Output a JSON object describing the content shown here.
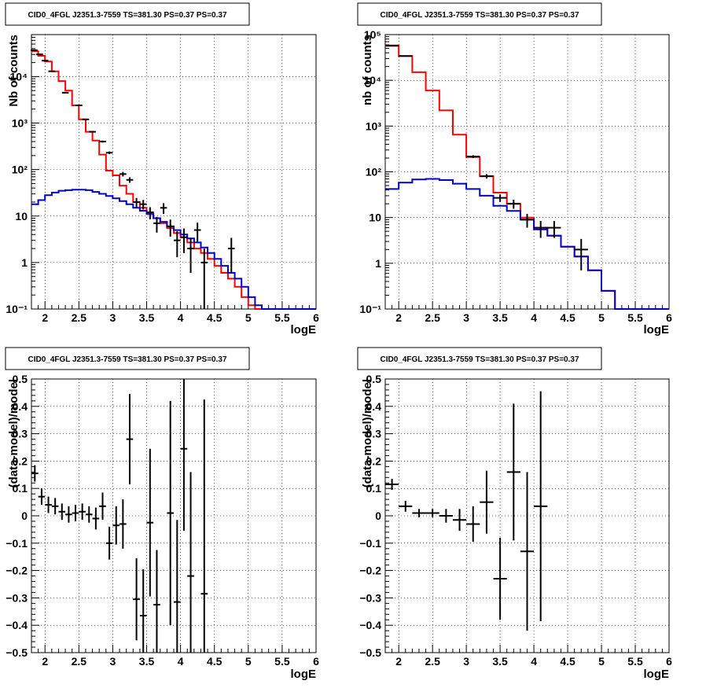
{
  "chart_data": [
    {
      "type": "line",
      "title": "CID0_4FGL J2351.3-7559 TS=381.30 PS=0.37 PS=0.37",
      "xlabel": "logE",
      "ylabel": "Nb of counts",
      "xlim": [
        1.8,
        6.0
      ],
      "ylim": [
        0.1,
        80000
      ],
      "yscale": "log",
      "grid": true,
      "x_ticks": [
        "2",
        "2.5",
        "3",
        "3.5",
        "4",
        "4.5",
        "5",
        "5.5",
        "6"
      ],
      "y_ticks": [
        "10⁻¹",
        "1",
        "10",
        "10²",
        "10³",
        "10⁴"
      ],
      "series": [
        {
          "color": "#ff0000",
          "style": "step",
          "edges": [
            1.8,
            1.9,
            2.0,
            2.1,
            2.2,
            2.3,
            2.4,
            2.5,
            2.6,
            2.7,
            2.8,
            2.9,
            3.0,
            3.1,
            3.2,
            3.3,
            3.4,
            3.5,
            3.6,
            3.7,
            3.8,
            3.9,
            4.0,
            4.1,
            4.2,
            4.3,
            4.4,
            4.5,
            4.6,
            4.7,
            4.8,
            4.9,
            5.0,
            5.1,
            5.2,
            5.3,
            5.4,
            5.5,
            5.6,
            5.7,
            5.8,
            5.9,
            6.0
          ],
          "values": [
            35000,
            28000,
            21000,
            13000,
            8000,
            5000,
            2400,
            1200,
            650,
            420,
            210,
            95,
            75,
            45,
            30,
            20,
            15,
            12,
            9,
            7,
            5.5,
            4.3,
            3.5,
            2.7,
            2.0,
            1.6,
            1.2,
            0.85,
            0.6,
            0.45,
            0.3,
            0.18,
            0.12,
            0.09,
            0.09,
            0.09,
            0.09,
            0.09,
            0.09,
            0.09,
            0.09,
            0.09
          ]
        },
        {
          "color": "#0000cc",
          "style": "step",
          "edges": [
            1.8,
            1.9,
            2.0,
            2.1,
            2.2,
            2.3,
            2.4,
            2.5,
            2.6,
            2.7,
            2.8,
            2.9,
            3.0,
            3.1,
            3.2,
            3.3,
            3.4,
            3.5,
            3.6,
            3.7,
            3.8,
            3.9,
            4.0,
            4.1,
            4.2,
            4.3,
            4.4,
            4.5,
            4.6,
            4.7,
            4.8,
            4.9,
            5.0,
            5.1,
            5.2,
            5.3,
            5.4,
            5.5,
            5.6,
            5.7,
            5.8,
            5.9,
            6.0
          ],
          "values": [
            18,
            22,
            28,
            32,
            35,
            36,
            37,
            37,
            36,
            33,
            30,
            27,
            24,
            21,
            18,
            15,
            13,
            11,
            9,
            7.5,
            6,
            5,
            4,
            3.3,
            2.7,
            2.1,
            1.6,
            1.2,
            0.85,
            0.6,
            0.45,
            0.3,
            0.18,
            0.12,
            0.09,
            0.09,
            0.09,
            0.09,
            0.09,
            0.09,
            0.09,
            0.09
          ]
        },
        {
          "color": "#000000",
          "style": "errorbar",
          "points": [
            {
              "x": 1.84,
              "y": 37000,
              "yerr_lo": 200,
              "yerr_hi": 200,
              "xerr": 0.05
            },
            {
              "x": 1.92,
              "y": 30000,
              "yerr_lo": 180,
              "yerr_hi": 180,
              "xerr": 0.05
            },
            {
              "x": 2.0,
              "y": 22000,
              "yerr_lo": 150,
              "yerr_hi": 150,
              "xerr": 0.05
            },
            {
              "x": 2.1,
              "y": 13000,
              "yerr_lo": 110,
              "yerr_hi": 110,
              "xerr": 0.05
            },
            {
              "x": 2.3,
              "y": 4500,
              "yerr_lo": 70,
              "yerr_hi": 70,
              "xerr": 0.05
            },
            {
              "x": 2.5,
              "y": 2400,
              "yerr_lo": 50,
              "yerr_hi": 50,
              "xerr": 0.05
            },
            {
              "x": 2.6,
              "y": 1200,
              "yerr_lo": 35,
              "yerr_hi": 35,
              "xerr": 0.05
            },
            {
              "x": 2.7,
              "y": 650,
              "yerr_lo": 25,
              "yerr_hi": 25,
              "xerr": 0.05
            },
            {
              "x": 2.85,
              "y": 400,
              "yerr_lo": 20,
              "yerr_hi": 20,
              "xerr": 0.05
            },
            {
              "x": 2.95,
              "y": 230,
              "yerr_lo": 15,
              "yerr_hi": 15,
              "xerr": 0.05
            },
            {
              "x": 3.15,
              "y": 80,
              "yerr_lo": 9,
              "yerr_hi": 9,
              "xerr": 0.05
            },
            {
              "x": 3.25,
              "y": 60,
              "yerr_lo": 8,
              "yerr_hi": 8,
              "xerr": 0.05
            },
            {
              "x": 3.35,
              "y": 20,
              "yerr_lo": 4.5,
              "yerr_hi": 4.5,
              "xerr": 0.05
            },
            {
              "x": 3.45,
              "y": 18,
              "yerr_lo": 4.2,
              "yerr_hi": 4.2,
              "xerr": 0.05
            },
            {
              "x": 3.55,
              "y": 12,
              "yerr_lo": 3.5,
              "yerr_hi": 3.5,
              "xerr": 0.05
            },
            {
              "x": 3.65,
              "y": 7,
              "yerr_lo": 2.6,
              "yerr_hi": 2.6,
              "xerr": 0.05
            },
            {
              "x": 3.75,
              "y": 15,
              "yerr_lo": 3.9,
              "yerr_hi": 3.9,
              "xerr": 0.05
            },
            {
              "x": 3.85,
              "y": 6,
              "yerr_lo": 2.4,
              "yerr_hi": 2.4,
              "xerr": 0.05
            },
            {
              "x": 3.95,
              "y": 3,
              "yerr_lo": 1.7,
              "yerr_hi": 1.7,
              "xerr": 0.05
            },
            {
              "x": 4.05,
              "y": 3.5,
              "yerr_lo": 1.9,
              "yerr_hi": 1.9,
              "xerr": 0.05
            },
            {
              "x": 4.15,
              "y": 2,
              "yerr_lo": 1.4,
              "yerr_hi": 1.4,
              "xerr": 0.05
            },
            {
              "x": 4.25,
              "y": 5,
              "yerr_lo": 2.2,
              "yerr_hi": 2.2,
              "xerr": 0.05
            },
            {
              "x": 4.35,
              "y": 1,
              "yerr_lo": 0.95,
              "yerr_hi": 1.0,
              "xerr": 0.05
            },
            {
              "x": 4.75,
              "y": 2,
              "yerr_lo": 1.4,
              "yerr_hi": 1.4,
              "xerr": 0.05
            }
          ]
        }
      ]
    },
    {
      "type": "line",
      "title": "CID0_4FGL J2351.3-7559 TS=381.30 PS=0.37 PS=0.37",
      "xlabel": "logE",
      "ylabel": "nb of counts",
      "xlim": [
        1.8,
        6.0
      ],
      "ylim": [
        0.1,
        100000
      ],
      "yscale": "log",
      "grid": true,
      "x_ticks": [
        "2",
        "2.5",
        "3",
        "3.5",
        "4",
        "4.5",
        "5",
        "5.5",
        "6"
      ],
      "y_ticks": [
        "10⁻¹",
        "1",
        "10",
        "10²",
        "10³",
        "10⁴",
        "10⁵"
      ],
      "series": [
        {
          "color": "#ff0000",
          "style": "step",
          "edges": [
            1.8,
            2.0,
            2.2,
            2.4,
            2.6,
            2.8,
            3.0,
            3.2,
            3.4,
            3.6,
            3.8,
            4.0,
            4.2,
            4.4,
            4.6,
            4.8,
            5.0,
            5.2,
            5.4,
            5.6,
            5.8,
            6.0
          ],
          "values": [
            58000,
            34000,
            15000,
            6000,
            2200,
            650,
            210,
            80,
            35,
            20,
            10,
            6,
            4,
            2.3,
            1.4,
            0.7,
            0.25,
            0.1,
            0.09,
            0.09,
            0.09
          ]
        },
        {
          "color": "#0000cc",
          "style": "step",
          "edges": [
            1.8,
            2.0,
            2.2,
            2.4,
            2.6,
            2.8,
            3.0,
            3.2,
            3.4,
            3.6,
            3.8,
            4.0,
            4.2,
            4.4,
            4.6,
            4.8,
            5.0,
            5.2,
            5.4,
            5.6,
            5.8,
            6.0
          ],
          "values": [
            42,
            58,
            68,
            70,
            66,
            55,
            42,
            30,
            18,
            14,
            9,
            5.5,
            4,
            2.3,
            1.4,
            0.7,
            0.25,
            0.1,
            0.09,
            0.09,
            0.09
          ]
        },
        {
          "color": "#000000",
          "style": "errorbar",
          "points": [
            {
              "x": 1.9,
              "y": 57000,
              "yerr_lo": 240,
              "yerr_hi": 240,
              "xerr": 0.1
            },
            {
              "x": 2.1,
              "y": 34000,
              "yerr_lo": 180,
              "yerr_hi": 180,
              "xerr": 0.1
            },
            {
              "x": 3.1,
              "y": 215,
              "yerr_lo": 15,
              "yerr_hi": 15,
              "xerr": 0.1
            },
            {
              "x": 3.3,
              "y": 80,
              "yerr_lo": 9,
              "yerr_hi": 9,
              "xerr": 0.1
            },
            {
              "x": 3.5,
              "y": 27,
              "yerr_lo": 5,
              "yerr_hi": 5,
              "xerr": 0.1
            },
            {
              "x": 3.7,
              "y": 20,
              "yerr_lo": 4.5,
              "yerr_hi": 4.5,
              "xerr": 0.1
            },
            {
              "x": 3.9,
              "y": 9,
              "yerr_lo": 3,
              "yerr_hi": 3,
              "xerr": 0.1
            },
            {
              "x": 4.1,
              "y": 6,
              "yerr_lo": 2.4,
              "yerr_hi": 2.4,
              "xerr": 0.1
            },
            {
              "x": 4.3,
              "y": 6,
              "yerr_lo": 2.4,
              "yerr_hi": 2.4,
              "xerr": 0.1
            },
            {
              "x": 4.7,
              "y": 2,
              "yerr_lo": 1.3,
              "yerr_hi": 1.4,
              "xerr": 0.1
            }
          ]
        }
      ]
    },
    {
      "type": "scatter",
      "title": "CID0_4FGL J2351.3-7559 TS=381.30 PS=0.37 PS=0.37",
      "xlabel": "logE",
      "ylabel": "(data-model)/model",
      "xlim": [
        1.8,
        6.0
      ],
      "ylim": [
        -0.5,
        0.5
      ],
      "grid": true,
      "x_ticks": [
        "2",
        "2.5",
        "3",
        "3.5",
        "4",
        "4.5",
        "5",
        "5.5",
        "6"
      ],
      "y_ticks": [
        "−0.5",
        "−0.4",
        "−0.3",
        "−0.2",
        "−0.1",
        "0",
        "0.1",
        "0.2",
        "0.3",
        "0.4",
        "0.5"
      ],
      "series": [
        {
          "color": "#000000",
          "style": "errorbar",
          "points": [
            {
              "x": 1.85,
              "y": 0.155,
              "yerr": 0.03,
              "xerr": 0.05
            },
            {
              "x": 1.95,
              "y": 0.07,
              "yerr": 0.03,
              "xerr": 0.05
            },
            {
              "x": 2.05,
              "y": 0.04,
              "yerr": 0.03,
              "xerr": 0.05
            },
            {
              "x": 2.15,
              "y": 0.035,
              "yerr": 0.03,
              "xerr": 0.05
            },
            {
              "x": 2.25,
              "y": 0.015,
              "yerr": 0.03,
              "xerr": 0.05
            },
            {
              "x": 2.35,
              "y": 0.005,
              "yerr": 0.03,
              "xerr": 0.05
            },
            {
              "x": 2.45,
              "y": 0.01,
              "yerr": 0.03,
              "xerr": 0.05
            },
            {
              "x": 2.55,
              "y": 0.015,
              "yerr": 0.03,
              "xerr": 0.05
            },
            {
              "x": 2.65,
              "y": 0.005,
              "yerr": 0.03,
              "xerr": 0.05
            },
            {
              "x": 2.75,
              "y": -0.01,
              "yerr": 0.04,
              "xerr": 0.05
            },
            {
              "x": 2.85,
              "y": 0.035,
              "yerr": 0.05,
              "xerr": 0.05
            },
            {
              "x": 2.95,
              "y": -0.1,
              "yerr": 0.06,
              "xerr": 0.05
            },
            {
              "x": 3.05,
              "y": -0.035,
              "yerr": 0.07,
              "xerr": 0.05
            },
            {
              "x": 3.15,
              "y": -0.03,
              "yerr": 0.09,
              "xerr": 0.05
            },
            {
              "x": 3.25,
              "y": 0.28,
              "yerr": 0.165,
              "xerr": 0.05
            },
            {
              "x": 3.35,
              "y": -0.305,
              "yerr": 0.15,
              "xerr": 0.05
            },
            {
              "x": 3.45,
              "y": -0.365,
              "yerr": 0.17,
              "xerr": 0.05
            },
            {
              "x": 3.55,
              "y": -0.025,
              "yerr": 0.27,
              "xerr": 0.05
            },
            {
              "x": 3.65,
              "y": -0.325,
              "yerr": 0.2,
              "xerr": 0.05
            },
            {
              "x": 3.85,
              "y": 0.01,
              "yerr": 0.41,
              "xerr": 0.05
            },
            {
              "x": 3.95,
              "y": -0.315,
              "yerr": 0.3,
              "xerr": 0.05
            },
            {
              "x": 4.05,
              "y": 0.245,
              "yerr": 0.3,
              "xerr": 0.05
            },
            {
              "x": 4.15,
              "y": -0.22,
              "yerr": 0.38,
              "xerr": 0.05
            },
            {
              "x": 4.35,
              "y": -0.285,
              "yerr": 0.71,
              "xerr": 0.05
            }
          ]
        }
      ]
    },
    {
      "type": "scatter",
      "title": "CID0_4FGL J2351.3-7559 TS=381.30 PS=0.37 PS=0.37",
      "xlabel": "logE",
      "ylabel": "(data-model)/model",
      "xlim": [
        1.8,
        6.0
      ],
      "ylim": [
        -0.5,
        0.5
      ],
      "grid": true,
      "x_ticks": [
        "2",
        "2.5",
        "3",
        "3.5",
        "4",
        "4.5",
        "5",
        "5.5",
        "6"
      ],
      "y_ticks": [
        "−0.5",
        "−0.4",
        "−0.3",
        "−0.2",
        "−0.1",
        "0",
        "0.1",
        "0.2",
        "0.3",
        "0.4",
        "0.5"
      ],
      "series": [
        {
          "color": "#000000",
          "style": "errorbar",
          "points": [
            {
              "x": 1.9,
              "y": 0.115,
              "yerr": 0.02,
              "xerr": 0.1
            },
            {
              "x": 2.1,
              "y": 0.035,
              "yerr": 0.02,
              "xerr": 0.1
            },
            {
              "x": 2.3,
              "y": 0.01,
              "yerr": 0.015,
              "xerr": 0.1
            },
            {
              "x": 2.5,
              "y": 0.01,
              "yerr": 0.015,
              "xerr": 0.1
            },
            {
              "x": 2.7,
              "y": 0.0,
              "yerr": 0.025,
              "xerr": 0.1
            },
            {
              "x": 2.9,
              "y": -0.015,
              "yerr": 0.04,
              "xerr": 0.1
            },
            {
              "x": 3.1,
              "y": -0.03,
              "yerr": 0.065,
              "xerr": 0.1
            },
            {
              "x": 3.3,
              "y": 0.05,
              "yerr": 0.115,
              "xerr": 0.1
            },
            {
              "x": 3.5,
              "y": -0.23,
              "yerr": 0.15,
              "xerr": 0.1
            },
            {
              "x": 3.7,
              "y": 0.16,
              "yerr": 0.25,
              "xerr": 0.1
            },
            {
              "x": 3.9,
              "y": -0.13,
              "yerr": 0.29,
              "xerr": 0.1
            },
            {
              "x": 4.1,
              "y": 0.035,
              "yerr": 0.42,
              "xerr": 0.1
            }
          ]
        }
      ]
    }
  ]
}
